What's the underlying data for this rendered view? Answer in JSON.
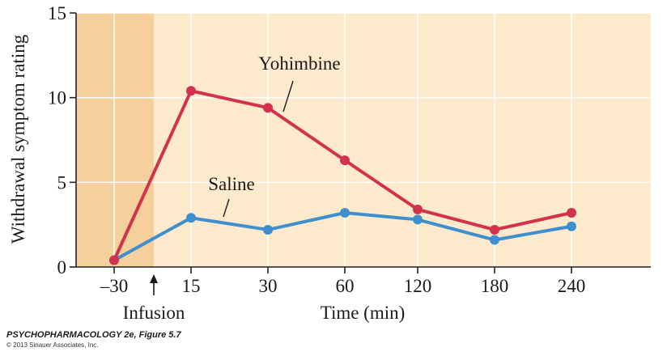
{
  "chart_data": {
    "type": "line",
    "categories": [
      "–30",
      "15",
      "30",
      "60",
      "120",
      "180",
      "240"
    ],
    "series": [
      {
        "name": "Yohimbine",
        "values": [
          0.4,
          10.4,
          9.4,
          6.3,
          3.4,
          2.2,
          3.2
        ],
        "color": "#d0334b"
      },
      {
        "name": "Saline",
        "values": [
          0.4,
          2.9,
          2.2,
          3.2,
          2.8,
          1.6,
          2.4
        ],
        "color": "#3f8fcf"
      }
    ],
    "ylim": [
      0,
      15
    ],
    "yticks": [
      0,
      5,
      10,
      15
    ],
    "ylabel": "Withdrawal symptom rating",
    "xlabel": "Time (min)",
    "annotations": {
      "infusion": "Infusion"
    },
    "grid": true,
    "legend": "inline labels"
  },
  "credit": {
    "title": "PSYCHOPHARMACOLOGY 2e, Figure 5.7",
    "copyright": "© 2013 Sinauer Associates, Inc."
  },
  "colors": {
    "plot_background": "#fde9cc",
    "pre_infusion_shade": "#f5cf9c",
    "grid": "#ffffff",
    "axis": "#222222"
  }
}
